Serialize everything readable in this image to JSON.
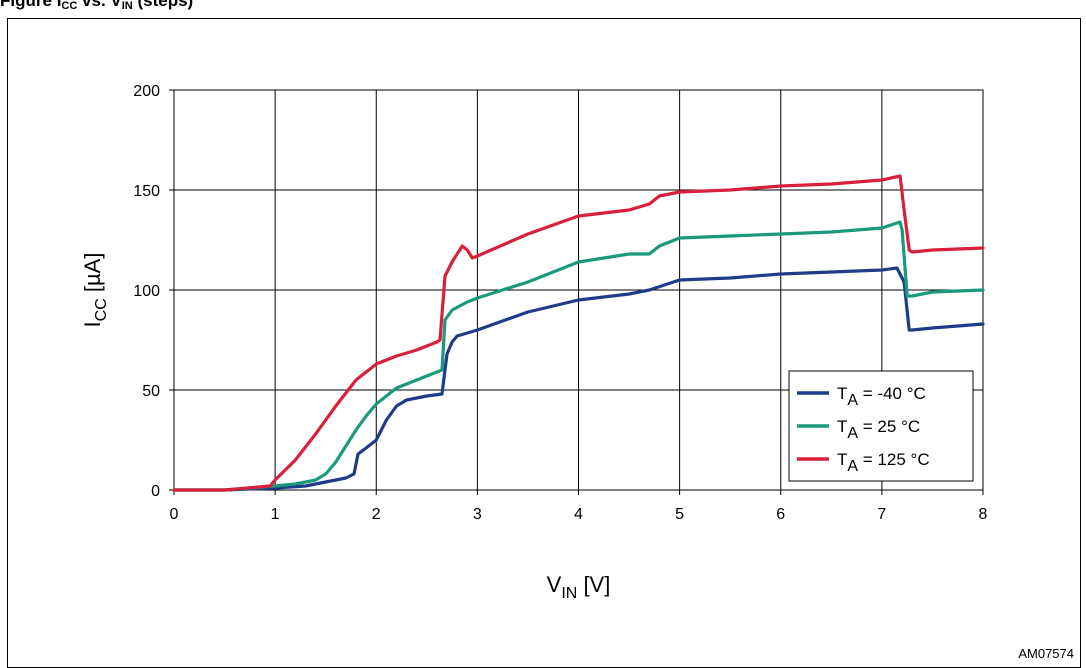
{
  "figure": {
    "title_prefix": "Figure",
    "title_main": "I",
    "title_sub": "CC",
    "title_tail": " vs. V",
    "title_sub2": "IN",
    "title_end": " (steps)",
    "code": "AM07574"
  },
  "chart_data": {
    "type": "line",
    "xlabel": "V",
    "xlabel_sub": "IN",
    "xlabel_unit": " [V]",
    "ylabel": "I",
    "ylabel_sub": "CC",
    "ylabel_unit": " [µA]",
    "xlim": [
      0,
      8
    ],
    "ylim": [
      0,
      200
    ],
    "xticks": [
      "0",
      "1",
      "2",
      "3",
      "4",
      "5",
      "6",
      "7",
      "8"
    ],
    "yticks": [
      "0",
      "50",
      "100",
      "150",
      "200"
    ],
    "grid": true,
    "legend_position": "lower-right",
    "series": [
      {
        "name": "T",
        "name_sub": "A",
        "name_rest": " = -40 °C",
        "color": "#1f3c88",
        "x": [
          0,
          0.5,
          1.0,
          1.3,
          1.5,
          1.7,
          1.78,
          1.82,
          1.9,
          2.0,
          2.1,
          2.2,
          2.3,
          2.5,
          2.65,
          2.7,
          2.75,
          2.8,
          3.0,
          3.5,
          4.0,
          4.5,
          4.7,
          5.0,
          5.5,
          6.0,
          6.5,
          7.0,
          7.15,
          7.22,
          7.27,
          7.3,
          7.5,
          8.0
        ],
        "y": [
          0,
          0,
          1,
          2,
          4,
          6,
          8,
          18,
          21,
          25,
          35,
          42,
          45,
          47,
          48,
          68,
          74,
          77,
          80,
          89,
          95,
          98,
          100,
          105,
          106,
          108,
          109,
          110,
          111,
          104,
          80,
          80,
          81,
          83
        ]
      },
      {
        "name": "T",
        "name_sub": "A",
        "name_rest": " = 25 °C",
        "color": "#199a7c",
        "x": [
          0,
          0.5,
          1.0,
          1.2,
          1.4,
          1.5,
          1.6,
          1.7,
          1.8,
          1.9,
          2.0,
          2.2,
          2.4,
          2.6,
          2.65,
          2.68,
          2.75,
          2.9,
          3.0,
          3.5,
          4.0,
          4.5,
          4.7,
          4.8,
          5.0,
          5.5,
          6.0,
          6.5,
          7.0,
          7.18,
          7.2,
          7.25,
          7.3,
          7.5,
          8.0
        ],
        "y": [
          0,
          0,
          2,
          3,
          5,
          8,
          14,
          22,
          30,
          37,
          43,
          51,
          55,
          59,
          60,
          85,
          90,
          94,
          96,
          104,
          114,
          118,
          118,
          122,
          126,
          127,
          128,
          129,
          131,
          134,
          130,
          97,
          97,
          99,
          100
        ]
      },
      {
        "name": "T",
        "name_sub": "A",
        "name_rest": " = 125 °C",
        "color": "#d81f3c",
        "x": [
          0,
          0.5,
          0.95,
          1.0,
          1.1,
          1.2,
          1.4,
          1.6,
          1.8,
          2.0,
          2.2,
          2.4,
          2.6,
          2.63,
          2.68,
          2.75,
          2.85,
          2.9,
          2.95,
          3.0,
          3.5,
          4.0,
          4.5,
          4.7,
          4.8,
          5.0,
          5.5,
          6.0,
          6.5,
          7.0,
          7.18,
          7.22,
          7.27,
          7.3,
          7.5,
          8.0
        ],
        "y": [
          0,
          0,
          2,
          5,
          10,
          15,
          28,
          42,
          55,
          63,
          67,
          70,
          74,
          75,
          107,
          114,
          122,
          120,
          116,
          117,
          128,
          137,
          140,
          143,
          147,
          149,
          150,
          152,
          153,
          155,
          157,
          140,
          120,
          119,
          120,
          121
        ]
      }
    ]
  }
}
